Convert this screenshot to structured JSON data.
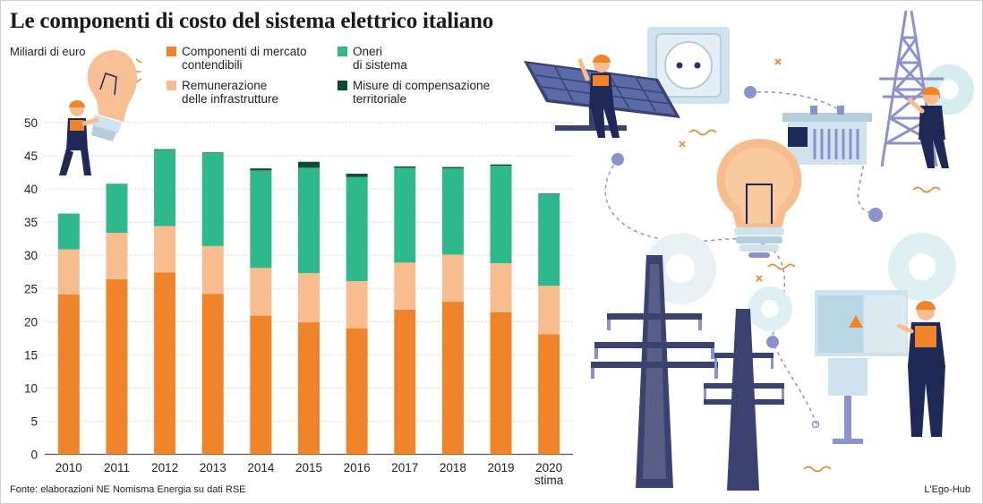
{
  "title": "Le componenti di costo del sistema elettrico italiano",
  "unit_label": "Miliardi di euro",
  "source": "Fonte: elaborazioni NE Nomisma Energia su dati RSE",
  "credit": "L'Ego-Hub",
  "colors": {
    "mercato": "#f0842a",
    "infrastrutture": "#f8bd8e",
    "oneri": "#2eb88b",
    "compensazione": "#0d4a35"
  },
  "legend": [
    {
      "lines": [
        "Componenti di mercato",
        "contendibili"
      ],
      "color": "#f0842a"
    },
    {
      "lines": [
        "Remunerazione",
        "delle infrastrutture"
      ],
      "color": "#f8bd8e"
    },
    {
      "lines": [
        "Oneri",
        "di sistema"
      ],
      "color": "#2eb88b"
    },
    {
      "lines": [
        "Misure di compensazione",
        "territoriale"
      ],
      "color": "#0d4a35"
    }
  ],
  "illustration_icons": [
    "light-bulb-icon",
    "solar-panel-icon",
    "power-socket-icon",
    "electricity-pylon-icon",
    "transformer-icon",
    "gear-icon",
    "electrician-worker-icon",
    "electrical-cabinet-icon"
  ],
  "chart_data": {
    "type": "bar",
    "stacked": true,
    "categories": [
      "2010",
      "2011",
      "2012",
      "2013",
      "2014",
      "2015",
      "2016",
      "2017",
      "2018",
      "2019",
      "2020"
    ],
    "category_sublabels": [
      "",
      "",
      "",
      "",
      "",
      "",
      "",
      "",
      "",
      "",
      "stima"
    ],
    "yticks": [
      0,
      5,
      10,
      15,
      20,
      25,
      30,
      35,
      40,
      45,
      50
    ],
    "ylim": [
      0,
      50
    ],
    "grid": true,
    "legend_position": "top",
    "series": [
      {
        "name": "Componenti di mercato contendibili",
        "values": [
          24.1,
          26.4,
          27.4,
          24.2,
          20.9,
          19.9,
          19.0,
          21.8,
          23.0,
          21.4,
          18.1
        ]
      },
      {
        "name": "Remunerazione delle infrastrutture",
        "values": [
          6.8,
          7.0,
          7.0,
          7.2,
          7.2,
          7.4,
          7.1,
          7.1,
          7.1,
          7.4,
          7.3
        ]
      },
      {
        "name": "Oneri di sistema",
        "values": [
          5.4,
          7.4,
          11.5,
          14.0,
          14.7,
          15.9,
          15.7,
          14.3,
          13.0,
          14.7,
          13.8
        ]
      },
      {
        "name": "Misure di compensazione territoriale",
        "values": [
          0.0,
          0.0,
          0.1,
          0.1,
          0.3,
          0.9,
          0.5,
          0.2,
          0.2,
          0.2,
          0.1
        ]
      }
    ]
  }
}
